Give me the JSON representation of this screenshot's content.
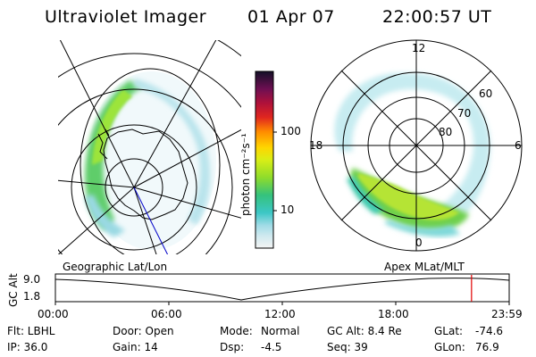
{
  "header": {
    "instrument": "Ultraviolet Imager",
    "date": "01 Apr 07",
    "time": "22:00:57 UT"
  },
  "colorbar": {
    "unit_label": "photon cm⁻²s⁻¹",
    "ticks": [
      "100",
      "10"
    ]
  },
  "polar_plot": {
    "mlt_labels": [
      "12",
      "18",
      "6",
      "0"
    ],
    "lat_labels": [
      "60",
      "70",
      "80"
    ]
  },
  "frame_labels": {
    "geographic": "Geographic Lat/Lon",
    "apex": "Apex MLat/MLT"
  },
  "altitude_plot": {
    "axis_label": "GC Alt",
    "y_ticks": [
      "9.0",
      "1.8"
    ],
    "x_ticks": [
      "00:00",
      "06:00",
      "12:00",
      "18:00",
      "23:59"
    ],
    "current_time_fraction": 0.917
  },
  "info": {
    "flt": "Flt: LBHL",
    "ip": "IP: 36.0",
    "door": "Door: Open",
    "gain": "Gain: 14",
    "mode_label": "Mode:",
    "mode_value": "Normal",
    "dsp_label": "Dsp:",
    "dsp_value": "-4.5",
    "gc_alt": "GC Alt: 8.4 Re",
    "seq": "Seq: 39",
    "glat_label": "GLat:",
    "glat_value": "-74.6",
    "glon_label": "GLon:",
    "glon_value": "76.9"
  },
  "colors": {
    "altitude_marker": "#e00000"
  }
}
